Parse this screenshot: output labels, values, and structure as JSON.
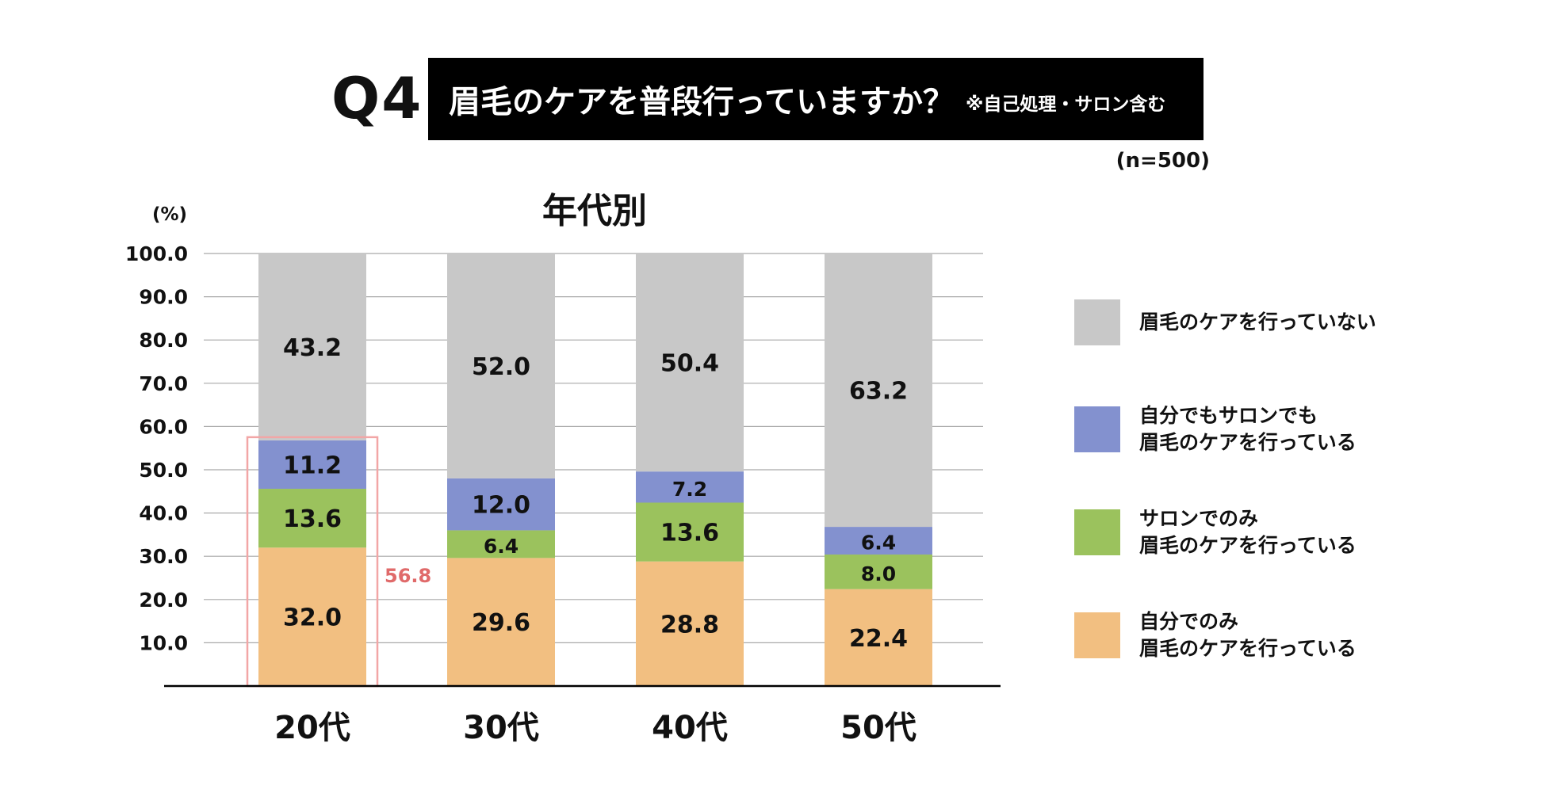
{
  "header": {
    "question_no": "Q4",
    "title": "眉毛のケアを普段行っていますか？",
    "note": "※自己処理・サロン含む",
    "sample": "(n=500)"
  },
  "colors": {
    "self_only": "#f2bf81",
    "salon_only": "#9bc25d",
    "both": "#8391cf",
    "none": "#c8c8c8",
    "highlight": "#f2a6a6",
    "highlight_text": "#e06a6a"
  },
  "legend": [
    {
      "key": "none",
      "line1": "眉毛のケアを行っていない",
      "line2": ""
    },
    {
      "key": "both",
      "line1": "自分でもサロンでも",
      "line2": "眉毛のケアを行っている"
    },
    {
      "key": "salon_only",
      "line1": "サロンでのみ",
      "line2": "眉毛のケアを行っている"
    },
    {
      "key": "self_only",
      "line1": "自分でのみ",
      "line2": "眉毛のケアを行っている"
    }
  ],
  "chart_data": {
    "type": "bar",
    "stacked": true,
    "title": "年代別",
    "ylabel": "(%)",
    "ylim": [
      0,
      100
    ],
    "yticks": [
      "10.0",
      "20.0",
      "30.0",
      "40.0",
      "50.0",
      "60.0",
      "70.0",
      "80.0",
      "90.0",
      "100.0"
    ],
    "categories": [
      "20代",
      "30代",
      "40代",
      "50代"
    ],
    "series": [
      {
        "key": "self_only",
        "name": "自分でのみ眉毛のケアを行っている",
        "values": [
          32.0,
          29.6,
          28.8,
          22.4
        ],
        "labels": [
          "32.0",
          "29.6",
          "28.8",
          "22.4"
        ]
      },
      {
        "key": "salon_only",
        "name": "サロンでのみ眉毛のケアを行っている",
        "values": [
          13.6,
          6.4,
          13.6,
          8.0
        ],
        "labels": [
          "13.6",
          "6.4",
          "13.6",
          "8.0"
        ]
      },
      {
        "key": "both",
        "name": "自分でもサロンでも眉毛のケアを行っている",
        "values": [
          11.2,
          12.0,
          7.2,
          6.4
        ],
        "labels": [
          "11.2",
          "12.0",
          "7.2",
          "6.4"
        ]
      },
      {
        "key": "none",
        "name": "眉毛のケアを行っていない",
        "values": [
          43.2,
          52.0,
          50.4,
          63.2
        ],
        "labels": [
          "43.2",
          "52.0",
          "50.4",
          "63.2"
        ]
      }
    ],
    "highlight": {
      "category_index": 0,
      "value": 56.8,
      "label": "56.8"
    }
  }
}
